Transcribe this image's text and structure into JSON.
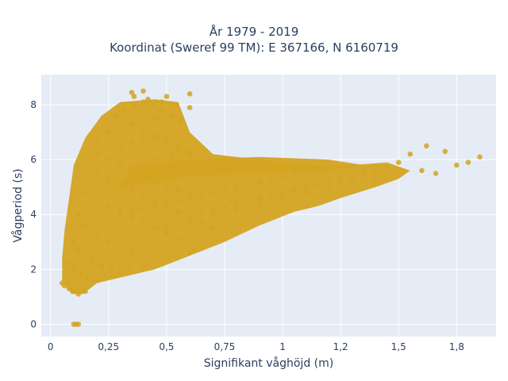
{
  "title_line1": "År 1979 - 2019",
  "title_line2": "Koordinat (Sweref 99 TM): E 367166, N 6160719",
  "colors": {
    "plot_bg": "#E5ECF6",
    "grid": "#ffffff",
    "marker": "#D4A422",
    "text": "#2a3f5f"
  },
  "chart_data": {
    "type": "scatter",
    "title": "År 1979 - 2019\nKoordinat (Sweref 99 TM): E 367166, N 6160719",
    "xlabel": "Signifikant våghöjd (m)",
    "ylabel": "Vågperiod (s)",
    "xlim": [
      -0.04,
      1.92
    ],
    "ylim": [
      -0.45,
      9.1
    ],
    "grid": true,
    "legend": "none",
    "x_ticks": [
      0,
      0.25,
      0.5,
      0.75,
      1,
      1.25,
      1.5,
      1.75
    ],
    "x_tick_labels": [
      "0",
      "0,25",
      "0,5",
      "0,75",
      "1",
      "1,2",
      "1,5",
      "1,8"
    ],
    "y_ticks": [
      0,
      2,
      4,
      6,
      8
    ],
    "y_tick_labels": [
      "0",
      "2",
      "4",
      "6",
      "8"
    ],
    "series": [
      {
        "x": [
          0.1,
          0.11,
          0.12,
          0.05,
          0.06,
          0.08,
          0.1,
          0.12,
          0.15,
          0.08,
          0.1,
          0.13,
          0.16,
          0.2,
          0.1,
          0.12,
          0.15,
          0.18,
          0.22,
          0.26,
          0.3,
          0.12,
          0.15,
          0.2,
          0.25,
          0.3,
          0.35,
          0.4,
          0.15,
          0.2,
          0.25,
          0.3,
          0.35,
          0.4,
          0.45,
          0.5,
          0.55,
          0.2,
          0.25,
          0.3,
          0.35,
          0.4,
          0.45,
          0.5,
          0.55,
          0.6,
          0.65,
          0.7,
          0.2,
          0.25,
          0.3,
          0.35,
          0.4,
          0.45,
          0.5,
          0.55,
          0.6,
          0.3,
          0.35,
          0.4,
          0.45,
          0.5,
          0.55,
          0.6,
          0.65,
          0.7,
          0.75,
          0.8,
          0.85,
          0.9,
          0.95,
          1.0,
          1.05,
          1.1,
          0.5,
          0.6,
          0.7,
          0.8,
          0.9,
          1.0,
          1.1,
          1.2,
          1.3,
          1.4,
          0.2,
          0.25,
          0.3,
          0.35,
          0.4,
          0.45,
          0.5,
          0.55,
          0.6,
          0.28,
          0.32,
          0.36,
          0.4,
          0.44,
          0.48,
          0.52,
          0.56,
          0.3,
          0.35,
          0.4,
          0.45,
          0.5,
          0.55,
          0.6,
          0.36,
          0.42,
          0.48,
          0.54,
          0.6,
          0.38,
          0.45,
          0.52,
          0.6,
          0.4,
          0.5,
          0.6,
          0.35,
          0.45,
          1.6,
          1.66,
          1.75,
          1.8,
          1.85,
          1.7,
          1.62,
          1.55,
          1.5,
          1.45,
          1.4,
          1.35,
          1.3,
          1.25,
          1.2,
          1.15,
          1.1,
          1.05,
          1.0,
          0.95,
          0.9,
          0.85,
          0.8,
          0.75,
          0.7,
          0.65,
          0.34,
          0.4,
          0.6,
          0.62
        ],
        "y": [
          0.0,
          0.0,
          0.0,
          1.5,
          1.4,
          1.3,
          1.2,
          1.1,
          1.2,
          2.2,
          2.0,
          1.8,
          1.7,
          1.6,
          3.0,
          2.7,
          2.5,
          2.3,
          2.1,
          2.0,
          1.9,
          4.0,
          3.6,
          3.3,
          3.0,
          2.8,
          2.6,
          2.5,
          4.8,
          4.5,
          4.3,
          4.1,
          3.9,
          3.7,
          3.5,
          3.3,
          3.1,
          5.5,
          5.3,
          5.1,
          4.9,
          4.7,
          4.5,
          4.3,
          4.1,
          3.9,
          3.7,
          3.5,
          6.2,
          6.0,
          5.8,
          5.6,
          5.4,
          5.2,
          5.0,
          4.9,
          4.8,
          4.0,
          4.1,
          4.2,
          4.3,
          4.4,
          4.5,
          4.6,
          4.7,
          4.8,
          4.9,
          5.0,
          5.1,
          5.2,
          5.3,
          5.4,
          5.5,
          5.6,
          3.5,
          3.8,
          4.0,
          4.2,
          4.4,
          4.6,
          4.8,
          5.0,
          5.1,
          5.2,
          6.8,
          7.0,
          7.2,
          7.3,
          7.1,
          6.9,
          6.7,
          6.5,
          6.3,
          7.6,
          7.8,
          8.0,
          8.1,
          8.0,
          7.8,
          7.6,
          7.4,
          6.5,
          6.6,
          6.7,
          6.8,
          6.6,
          6.4,
          6.2,
          8.3,
          8.2,
          8.1,
          8.0,
          7.9,
          5.8,
          6.0,
          6.1,
          6.2,
          8.5,
          8.3,
          8.4,
          8.45,
          7.5,
          5.6,
          5.5,
          5.8,
          5.9,
          6.1,
          6.3,
          6.5,
          6.2,
          5.9,
          5.7,
          5.6,
          5.5,
          5.4,
          5.3,
          5.2,
          5.1,
          5.0,
          4.9,
          4.8,
          4.7,
          4.6,
          4.5,
          4.4,
          4.3,
          4.2,
          4.1,
          2.0,
          2.1,
          2.6,
          2.7
        ]
      }
    ]
  }
}
